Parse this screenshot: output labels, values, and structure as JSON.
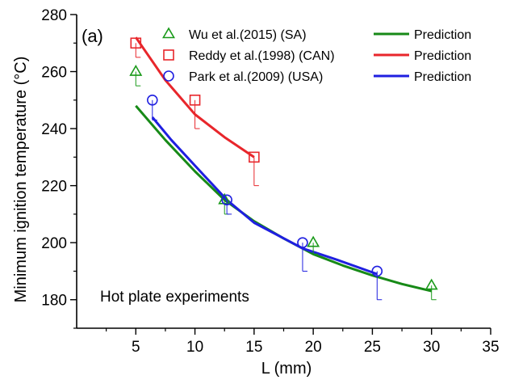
{
  "chart_data": {
    "type": "scatter",
    "panel_label": "(a)",
    "annotation": "Hot plate experiments",
    "xlabel": "L (mm)",
    "ylabel": "Minimum ignition temperature (°C)",
    "xlim": [
      0,
      35
    ],
    "ylim": [
      170,
      280
    ],
    "x_ticks": [
      5,
      10,
      15,
      20,
      25,
      30,
      35
    ],
    "y_ticks": [
      180,
      200,
      220,
      240,
      260,
      280
    ],
    "grid": false,
    "legend_placement": "top",
    "experiments": [
      {
        "name": "Wu et al.(2015) (SA)",
        "marker": "triangle",
        "color": "#1a9a1a",
        "points": [
          {
            "x": 5,
            "y": 260,
            "err_low": 255
          },
          {
            "x": 12.5,
            "y": 215,
            "err_low": 210
          },
          {
            "x": 20,
            "y": 200,
            "err_low": 196
          },
          {
            "x": 30,
            "y": 185,
            "err_low": 180
          }
        ]
      },
      {
        "name": "Reddy et al.(1998) (CAN)",
        "marker": "square",
        "color": "#e8262b",
        "points": [
          {
            "x": 5,
            "y": 270,
            "err_low": 265
          },
          {
            "x": 10,
            "y": 250,
            "err_low": 240
          },
          {
            "x": 15,
            "y": 230,
            "err_low": 220
          }
        ]
      },
      {
        "name": "Park et al.(2009) (USA)",
        "marker": "circle",
        "color": "#1f1fe0",
        "points": [
          {
            "x": 6.4,
            "y": 250,
            "err_low": 243
          },
          {
            "x": 12.7,
            "y": 215,
            "err_low": 210
          },
          {
            "x": 19.1,
            "y": 200,
            "err_low": 190
          },
          {
            "x": 25.4,
            "y": 190,
            "err_low": 180
          }
        ]
      }
    ],
    "predictions": [
      {
        "name": "Prediction",
        "color": "#178a17",
        "x": [
          5,
          7.5,
          10,
          12.5,
          15,
          17.5,
          20,
          22.5,
          25,
          27.5,
          30
        ],
        "y": [
          248,
          236,
          225,
          215,
          207.5,
          201.5,
          196,
          192,
          188.5,
          185.5,
          183
        ]
      },
      {
        "name": "Prediction",
        "color": "#e8262b",
        "x": [
          5,
          7.5,
          10,
          12.5,
          15
        ],
        "y": [
          272,
          257,
          245,
          237,
          230
        ]
      },
      {
        "name": "Prediction",
        "color": "#1f1fe0",
        "x": [
          6.4,
          8,
          10,
          12.7,
          15,
          19.1,
          22,
          25.4
        ],
        "y": [
          244,
          236,
          227,
          215,
          207,
          198,
          194,
          189
        ]
      }
    ]
  }
}
